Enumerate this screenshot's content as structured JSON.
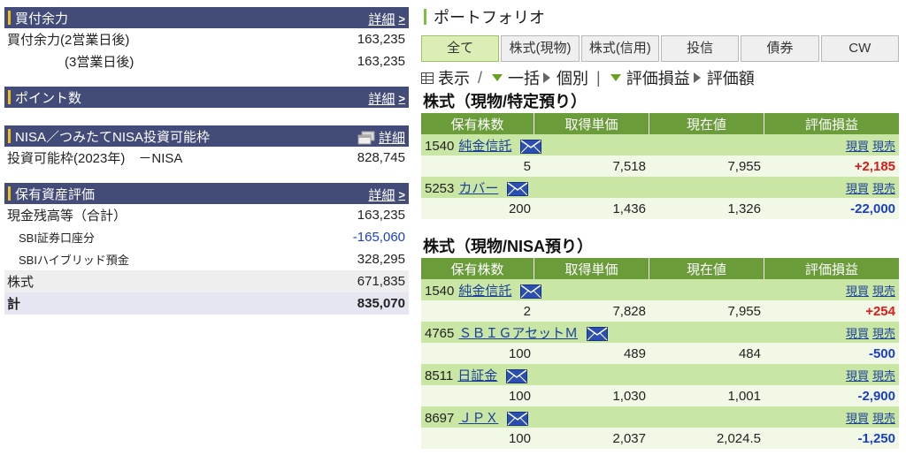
{
  "left": {
    "buying_power": {
      "title": "買付余力",
      "detail": "詳細",
      "rows": [
        {
          "label": "買付余力(2営業日後)",
          "value": "163,235"
        },
        {
          "label": "(3営業日後)",
          "value": "163,235"
        }
      ]
    },
    "points": {
      "title": "ポイント数",
      "detail": "詳細"
    },
    "nisa": {
      "title": "NISA／つみたてNISA投資可能枠",
      "detail": "詳細",
      "rows": [
        {
          "label": "投資可能枠(2023年)　－NISA",
          "value": "828,745"
        }
      ]
    },
    "assets": {
      "title": "保有資産評価",
      "detail": "詳細",
      "rows": [
        {
          "label": "現金残高等（合計）",
          "value": "163,235"
        },
        {
          "label": "SBI証券口座分",
          "value": "-165,060"
        },
        {
          "label": "SBIハイブリッド預金",
          "value": "328,295"
        },
        {
          "label": "株式",
          "value": "671,835"
        },
        {
          "label": "計",
          "value": "835,070"
        }
      ]
    }
  },
  "right": {
    "title": "ポートフォリオ",
    "tabs": [
      "全て",
      "株式(現物)",
      "株式(信用)",
      "投信",
      "債券",
      "CW"
    ],
    "toolbar": {
      "display": "表示",
      "sep": "/",
      "lump": "一括",
      "individual": "個別",
      "sep2": "|",
      "pl": "評価損益",
      "amount": "評価額"
    },
    "columns": [
      "保有株数",
      "取得単価",
      "現在値",
      "評価損益"
    ],
    "link_buy": "現買",
    "link_sell": "現売",
    "tokutei": {
      "title": "株式（現物/特定預り）",
      "rows": [
        {
          "code": "1540",
          "name": "純金信託",
          "qty": "5",
          "cost": "7,518",
          "price": "7,955",
          "pl": "+2,185",
          "sign": "pos"
        },
        {
          "code": "5253",
          "name": "カバー",
          "qty": "200",
          "cost": "1,436",
          "price": "1,326",
          "pl": "-22,000",
          "sign": "neg"
        }
      ]
    },
    "nisa": {
      "title": "株式（現物/NISA預り）",
      "rows": [
        {
          "code": "1540",
          "name": "純金信託",
          "qty": "2",
          "cost": "7,828",
          "price": "7,955",
          "pl": "+254",
          "sign": "pos"
        },
        {
          "code": "4765",
          "name": "ＳＢＩＧアセットＭ",
          "qty": "100",
          "cost": "489",
          "price": "484",
          "pl": "-500",
          "sign": "neg"
        },
        {
          "code": "8511",
          "name": "日証金",
          "qty": "100",
          "cost": "1,030",
          "price": "1,001",
          "pl": "-2,900",
          "sign": "neg"
        },
        {
          "code": "8697",
          "name": "ＪＰＸ",
          "qty": "100",
          "cost": "2,037",
          "price": "2,024.5",
          "pl": "-1,250",
          "sign": "neg"
        }
      ]
    }
  },
  "colors": {
    "left_header": "#434b78",
    "table_header": "#6a9c3a",
    "name_row": "#c9e6a4",
    "positive": "#e01818",
    "negative": "#1a3ecb"
  }
}
